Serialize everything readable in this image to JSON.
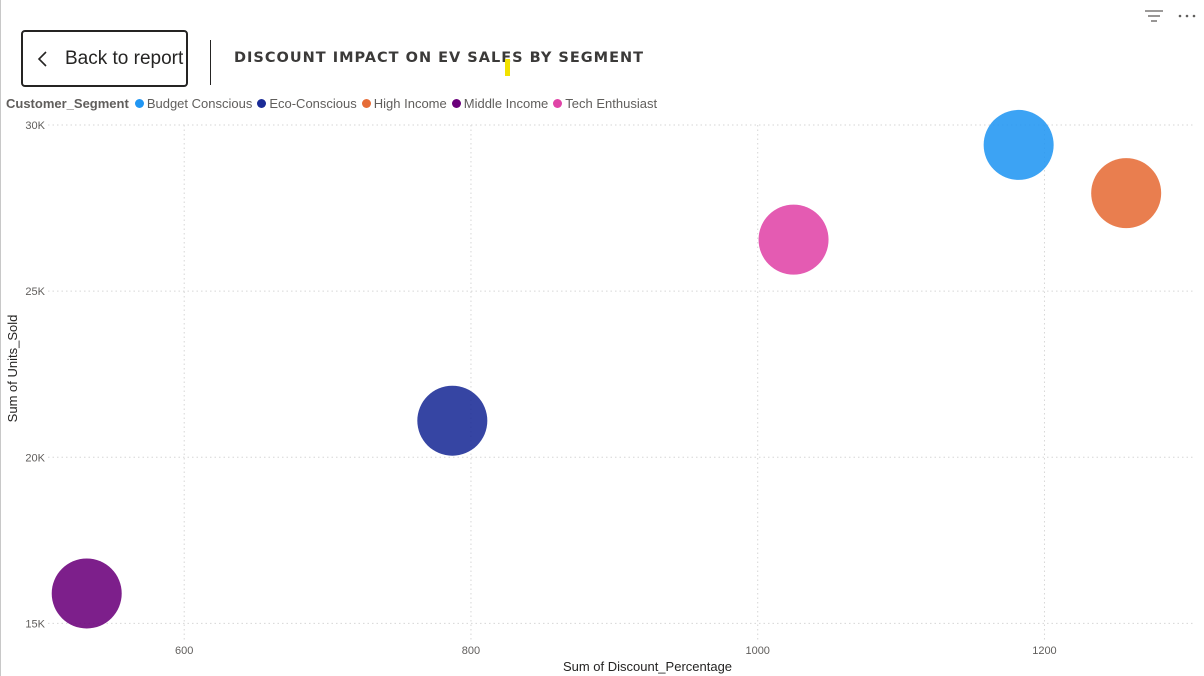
{
  "back_button": {
    "label": "Back to report"
  },
  "title": "DISCOUNT IMPACT ON EV SALES BY SEGMENT",
  "toolbar": {
    "filter_icon": "filter-icon",
    "more_icon": "more-options-icon"
  },
  "legend": {
    "title": "Customer_Segment",
    "items": [
      {
        "label": "Budget Conscious",
        "color": "#2196f3"
      },
      {
        "label": "Eco-Conscious",
        "color": "#1a2b96"
      },
      {
        "label": "High Income",
        "color": "#e66c37"
      },
      {
        "label": "Middle Income",
        "color": "#6b007b"
      },
      {
        "label": "Tech Enthusiast",
        "color": "#e044a7"
      }
    ]
  },
  "chart_data": {
    "type": "scatter",
    "title": "DISCOUNT IMPACT ON EV SALES BY SEGMENT",
    "xlabel": "Sum of Discount_Percentage",
    "ylabel": "Sum of Units_Sold",
    "xlim": [
      505,
      1305
    ],
    "ylim": [
      14500,
      30000
    ],
    "x_ticks": [
      600,
      800,
      1000,
      1200
    ],
    "y_ticks": [
      15000,
      20000,
      25000,
      30000
    ],
    "y_tick_labels": [
      "15K",
      "20K",
      "25K",
      "30K"
    ],
    "grid": true,
    "legend_position": "top-left",
    "series": [
      {
        "name": "Budget Conscious",
        "x": 1182,
        "y": 29400,
        "color": "#2196f3"
      },
      {
        "name": "Eco-Conscious",
        "x": 787,
        "y": 21100,
        "color": "#1a2b96"
      },
      {
        "name": "High Income",
        "x": 1257,
        "y": 27950,
        "color": "#e66c37"
      },
      {
        "name": "Middle Income",
        "x": 532,
        "y": 15900,
        "color": "#6b007b"
      },
      {
        "name": "Tech Enthusiast",
        "x": 1025,
        "y": 26550,
        "color": "#e044a7"
      }
    ]
  }
}
